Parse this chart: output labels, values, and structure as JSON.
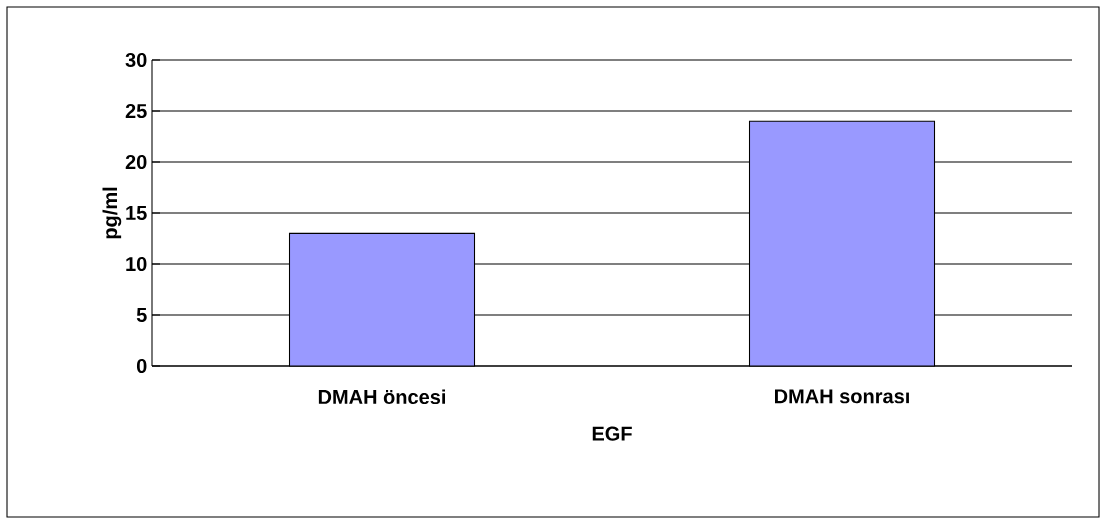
{
  "chart_data": {
    "type": "bar",
    "xlabel": "EGF",
    "ylabel": "pg/ml",
    "categories": [
      "DMAH öncesi",
      "DMAH sonrası"
    ],
    "values": [
      13,
      24
    ],
    "color": "#9999ff",
    "ylim": [
      0,
      30
    ],
    "yticks": [
      0,
      5,
      10,
      15,
      20,
      25,
      30
    ],
    "grid": "y"
  }
}
